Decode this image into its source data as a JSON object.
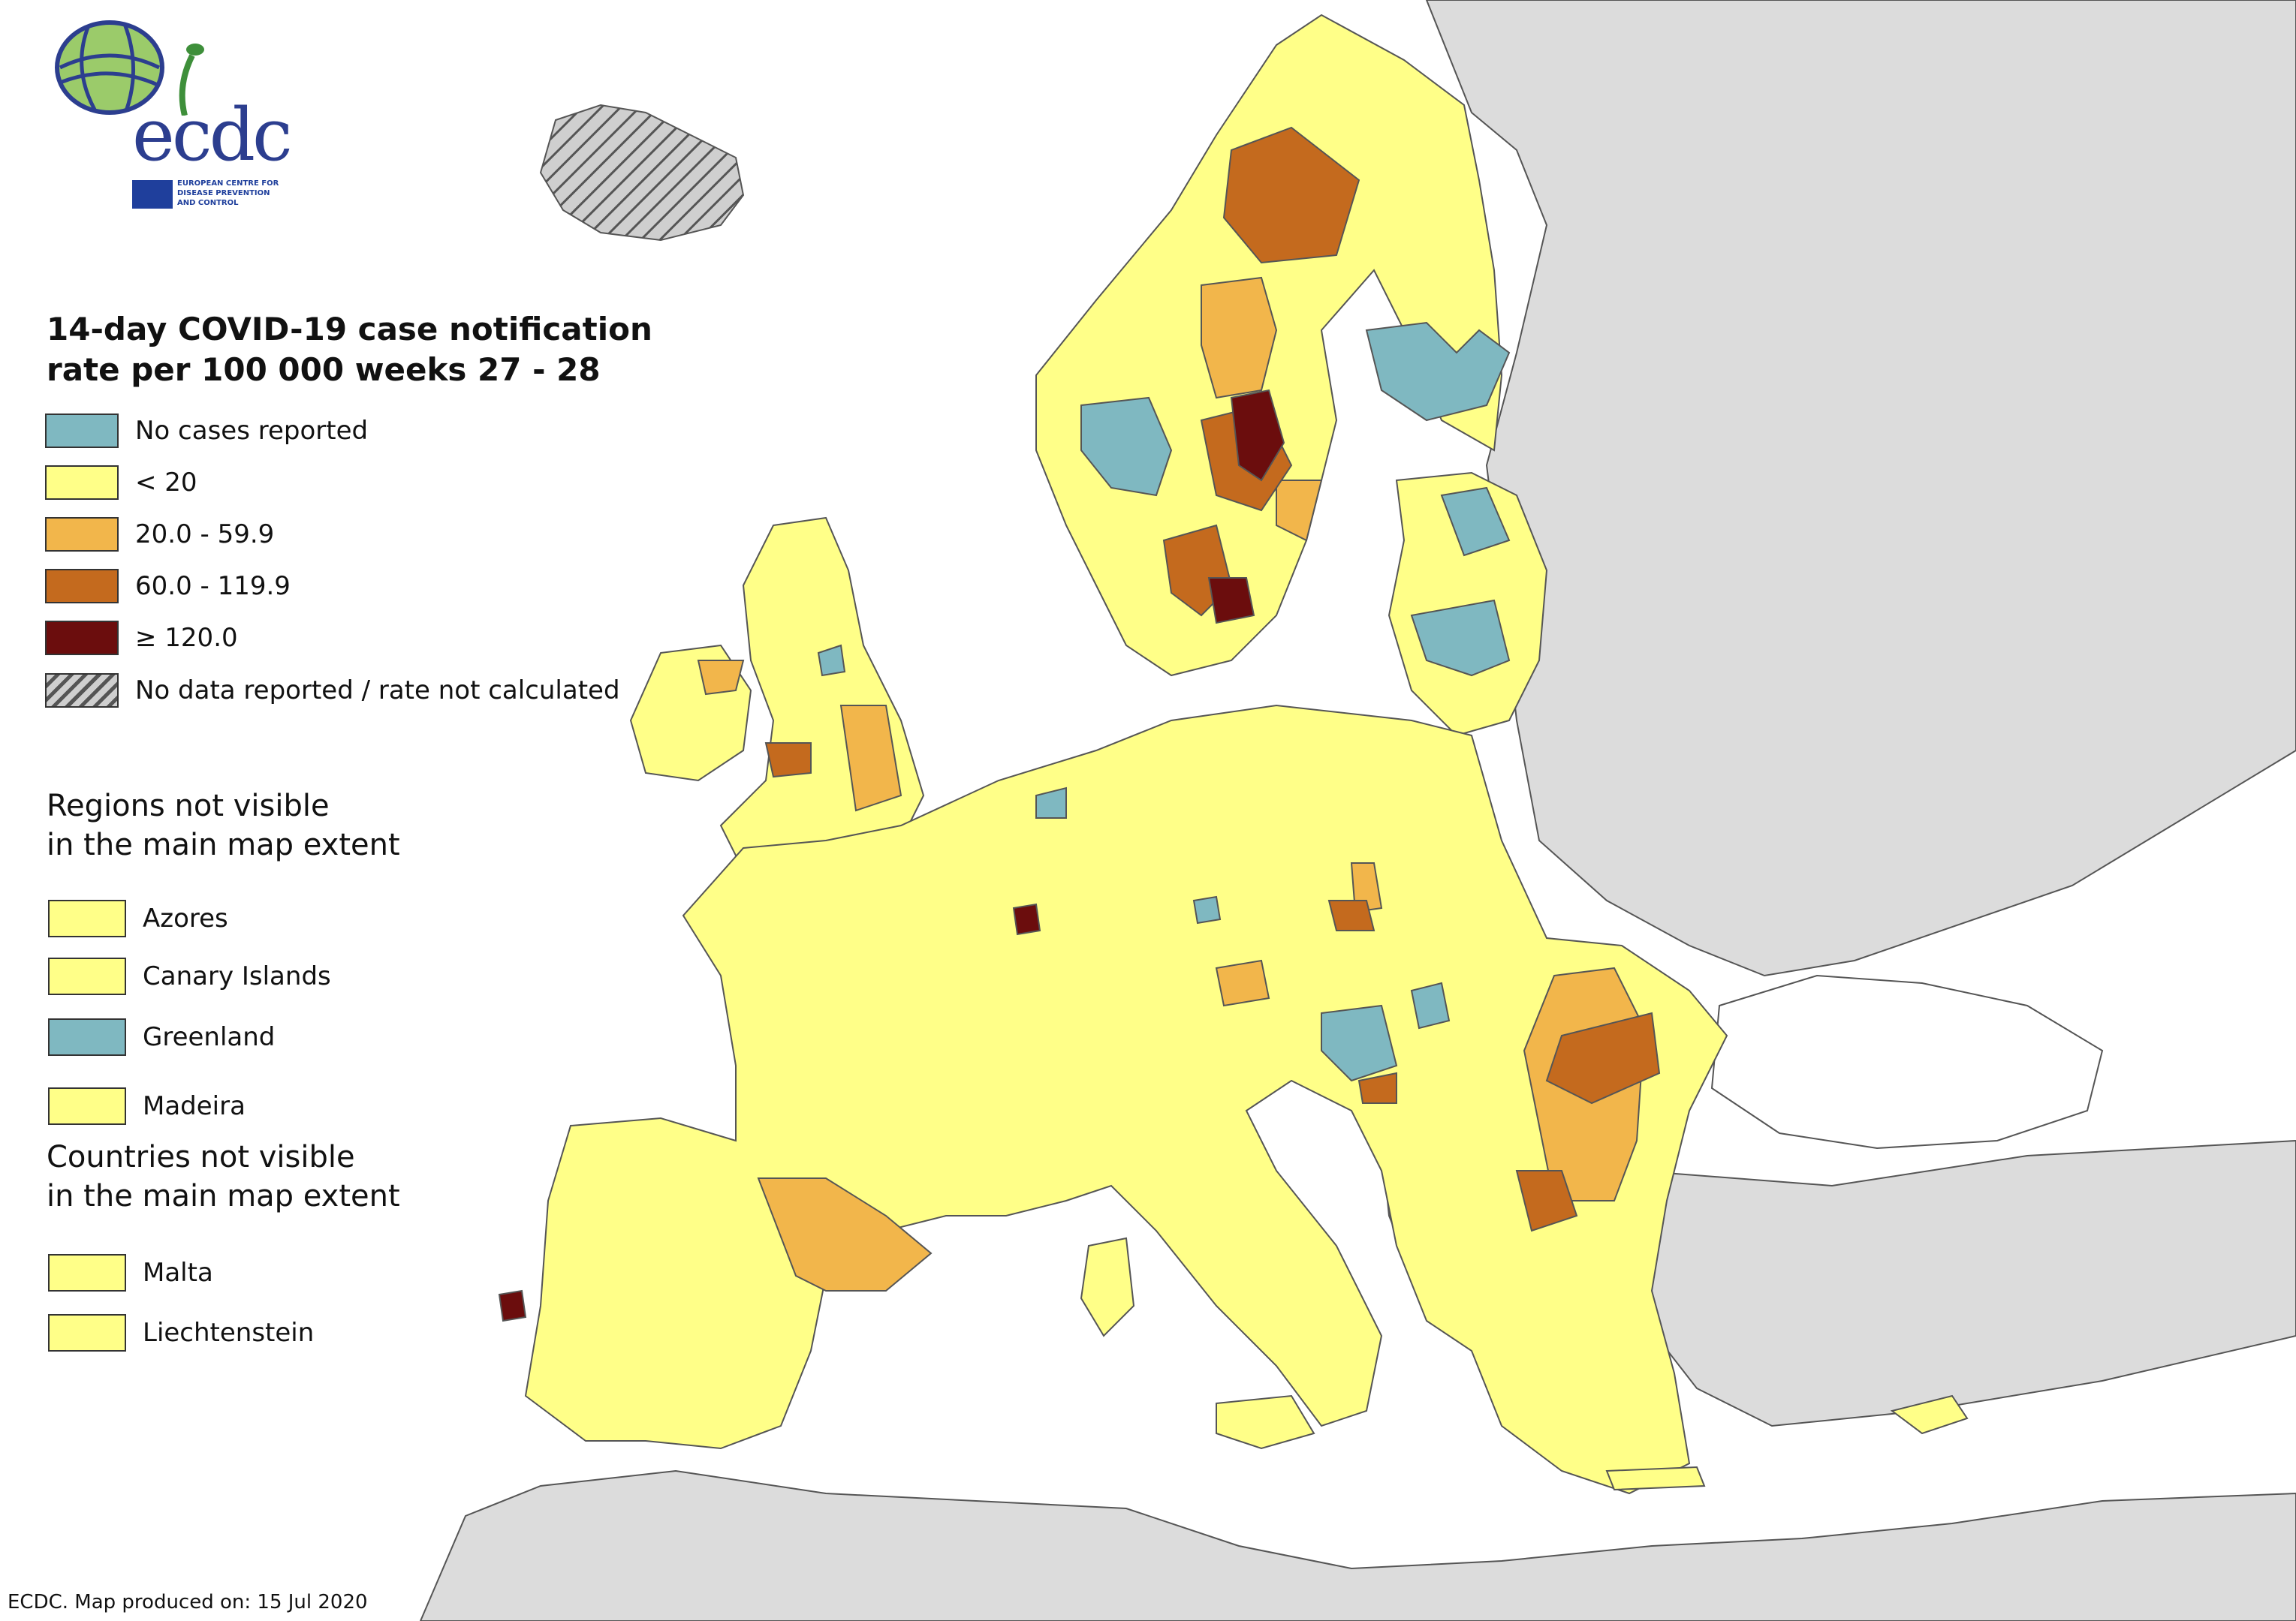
{
  "logo": {
    "text": "ecdc",
    "caption_lines": [
      "EUROPEAN CENTRE FOR",
      "DISEASE PREVENTION",
      "AND CONTROL"
    ]
  },
  "legend": {
    "title_line1": "14-day COVID-19 case notification",
    "title_line2": "rate per 100 000 weeks 27 - 28",
    "items": [
      {
        "label": "No cases reported",
        "color": "#7fb8c1"
      },
      {
        "label": "< 20",
        "color": "#ffff88"
      },
      {
        "label": "20.0 - 59.9",
        "color": "#f2b64b"
      },
      {
        "label": "60.0 - 119.9",
        "color": "#c46a1e"
      },
      {
        "label": "≥ 120.0",
        "color": "#6b0d0d"
      },
      {
        "label": "No data reported / rate not calculated",
        "color": "hatched"
      }
    ]
  },
  "regions_not_visible": {
    "heading_line1": "Regions not visible",
    "heading_line2": "in the main map extent",
    "items": [
      {
        "label": "Azores",
        "color": "#ffff88"
      },
      {
        "label": "Canary Islands",
        "color": "#ffff88"
      },
      {
        "label": "Greenland",
        "color": "#7fb8c1"
      },
      {
        "label": "Madeira",
        "color": "#ffff88"
      }
    ]
  },
  "countries_not_visible": {
    "heading_line1": "Countries not visible",
    "heading_line2": "in the main map extent",
    "items": [
      {
        "label": "Malta",
        "color": "#ffff88"
      },
      {
        "label": "Liechtenstein",
        "color": "#ffff88"
      }
    ]
  },
  "footer": {
    "text": "ECDC. Map produced on: 15 Jul 2020"
  },
  "colors": {
    "non_eu_land": "#dcdcdc",
    "eu_low": "#ffff88",
    "no_cases": "#7fb8c1",
    "medium": "#f2b64b",
    "high": "#c46a1e",
    "very_high": "#6b0d0d"
  }
}
